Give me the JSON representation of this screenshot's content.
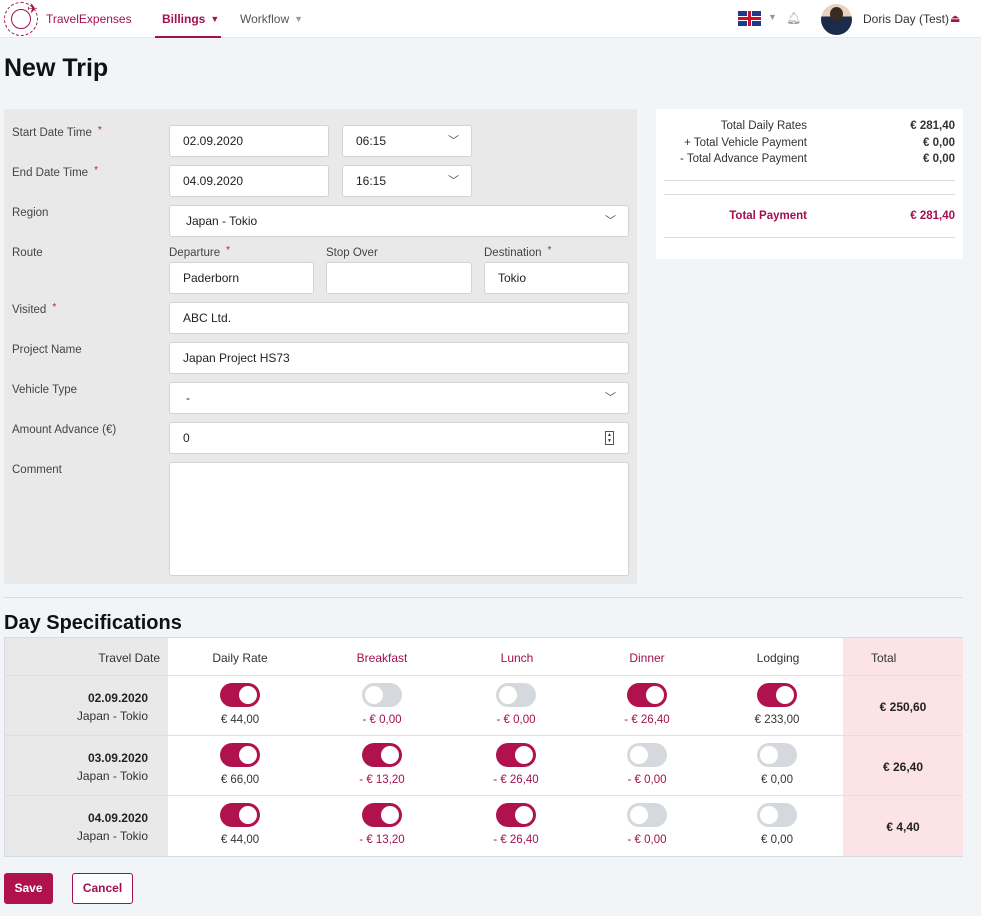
{
  "app": {
    "brand": "TravelExpenses"
  },
  "nav": {
    "billings": "Billings",
    "workflow": "Workflow",
    "user": "Doris Day (Test)"
  },
  "page": {
    "title": "New Trip"
  },
  "form": {
    "start_label": "Start Date Time",
    "start_date": "02.09.2020",
    "start_time": "06:15",
    "end_label": "End Date Time",
    "end_date": "04.09.2020",
    "end_time": "16:15",
    "region_label": "Region",
    "region": "Japan - Tokio",
    "route_label": "Route",
    "departure_label": "Departure",
    "departure": "Paderborn",
    "stopover_label": "Stop Over",
    "stopover": "",
    "destination_label": "Destination",
    "destination": "Tokio",
    "visited_label": "Visited",
    "visited": "ABC Ltd.",
    "project_label": "Project Name",
    "project": "Japan Project HS73",
    "vehicle_label": "Vehicle Type",
    "vehicle": "-",
    "advance_label": "Amount Advance (€)",
    "advance": "0",
    "comment_label": "Comment",
    "comment": "",
    "required_mark": "*"
  },
  "summary": {
    "daily_rates_label": "Total Daily Rates",
    "daily_rates": "€ 281,40",
    "vehicle_label": "+ Total Vehicle Payment",
    "vehicle": "€ 0,00",
    "advance_label": "- Total Advance Payment",
    "advance": "€ 0,00",
    "total_label": "Total Payment",
    "total": "€ 281,40"
  },
  "days": {
    "title": "Day Specifications",
    "headers": {
      "date": "Travel Date",
      "daily_rate": "Daily Rate",
      "breakfast": "Breakfast",
      "lunch": "Lunch",
      "dinner": "Dinner",
      "lodging": "Lodging",
      "total": "Total"
    },
    "rows": [
      {
        "date": "02.09.2020",
        "region": "Japan - Tokio",
        "daily_rate": "€ 44,00",
        "breakfast": "- € 0,00",
        "lunch": "- € 0,00",
        "dinner": "- € 26,40",
        "lodging": "€ 233,00",
        "total": "€ 250,60"
      },
      {
        "date": "03.09.2020",
        "region": "Japan - Tokio",
        "daily_rate": "€ 66,00",
        "breakfast": "- € 13,20",
        "lunch": "- € 26,40",
        "dinner": "- € 0,00",
        "lodging": "€ 0,00",
        "total": "€ 26,40"
      },
      {
        "date": "04.09.2020",
        "region": "Japan - Tokio",
        "daily_rate": "€ 44,00",
        "breakfast": "- € 13,20",
        "lunch": "- € 26,40",
        "dinner": "- € 0,00",
        "lodging": "€ 0,00",
        "total": "€ 4,40"
      }
    ]
  },
  "buttons": {
    "save": "Save",
    "cancel": "Cancel"
  },
  "icons": {
    "logo": "plane-globe-icon",
    "chevron": "chevron-down-icon",
    "flag": "uk-flag-icon",
    "bell": "bell-icon",
    "logout": "logout-icon",
    "spinner": "number-spinner-icon"
  },
  "colors": {
    "accent": "#a3104f",
    "toggle_on": "#b0124e",
    "toggle_off": "#d5d9de",
    "total_bg": "#fbe3e6"
  }
}
